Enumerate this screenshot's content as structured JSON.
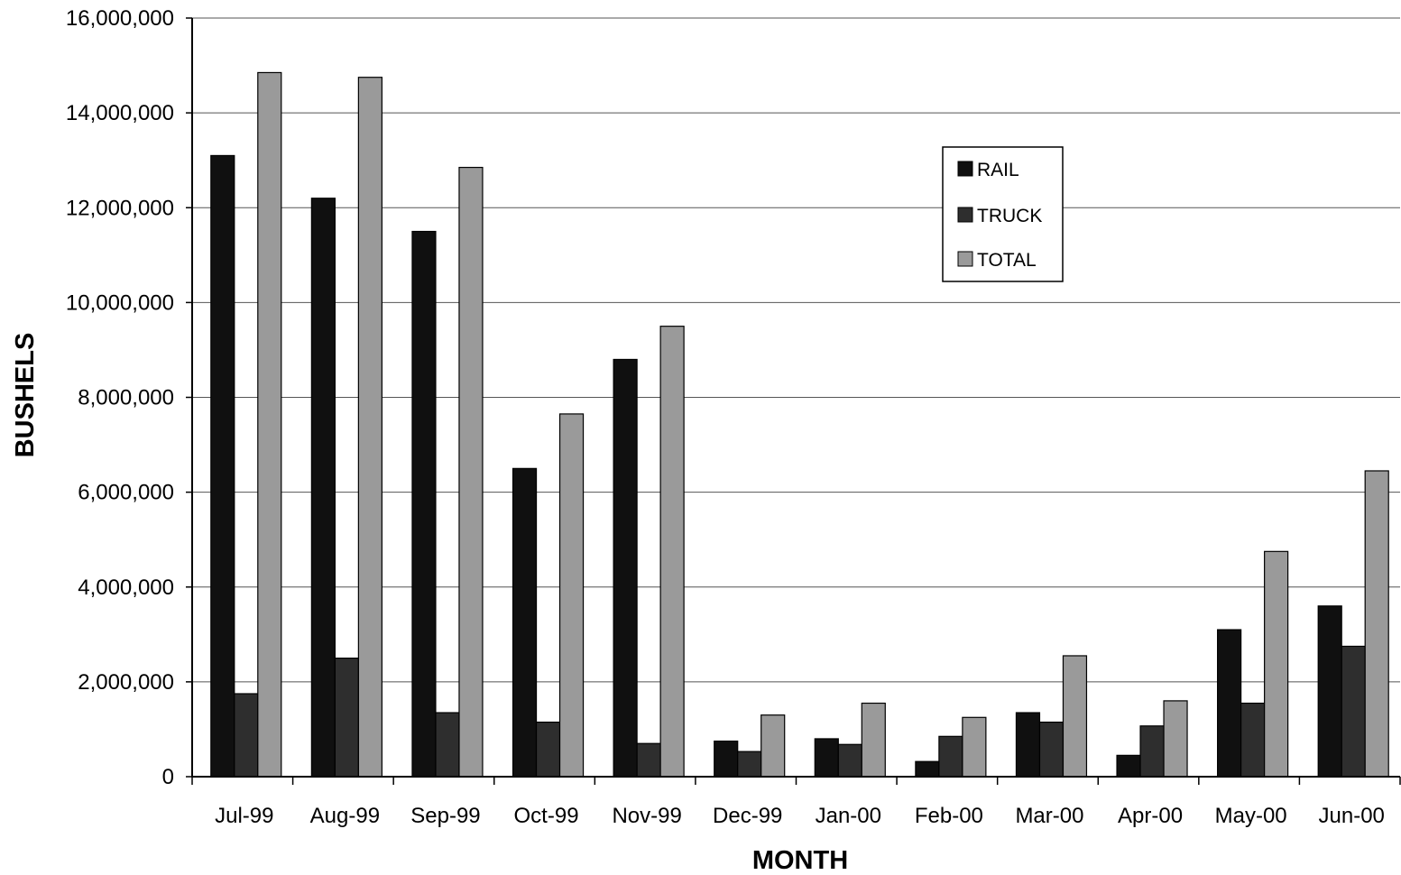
{
  "chart_data": {
    "type": "bar",
    "title": "",
    "xlabel": "MONTH",
    "ylabel": "BUSHELS",
    "ylim": [
      0,
      16000000
    ],
    "yticks": [
      "0",
      "2,000,000",
      "4,000,000",
      "6,000,000",
      "8,000,000",
      "10,000,000",
      "12,000,000",
      "14,000,000",
      "16,000,000"
    ],
    "ytick_values": [
      0,
      2000000,
      4000000,
      6000000,
      8000000,
      10000000,
      12000000,
      14000000,
      16000000
    ],
    "categories": [
      "Jul-99",
      "Aug-99",
      "Sep-99",
      "Oct-99",
      "Nov-99",
      "Dec-99",
      "Jan-00",
      "Feb-00",
      "Mar-00",
      "Apr-00",
      "May-00",
      "Jun-00"
    ],
    "series": [
      {
        "name": "RAIL",
        "color": "#101010",
        "values": [
          13100000,
          12200000,
          11500000,
          6500000,
          8800000,
          750000,
          800000,
          320000,
          1350000,
          450000,
          3100000,
          3600000
        ]
      },
      {
        "name": "TRUCK",
        "color": "#2e2e2e",
        "values": [
          1750000,
          2500000,
          1350000,
          1150000,
          700000,
          530000,
          680000,
          850000,
          1150000,
          1070000,
          1550000,
          2750000
        ]
      },
      {
        "name": "TOTAL",
        "color": "#9a9a9a",
        "values": [
          14850000,
          14750000,
          12850000,
          7650000,
          9500000,
          1300000,
          1550000,
          1250000,
          2550000,
          1600000,
          4750000,
          6450000
        ]
      }
    ],
    "grid": true,
    "legend_position": "top-right"
  }
}
